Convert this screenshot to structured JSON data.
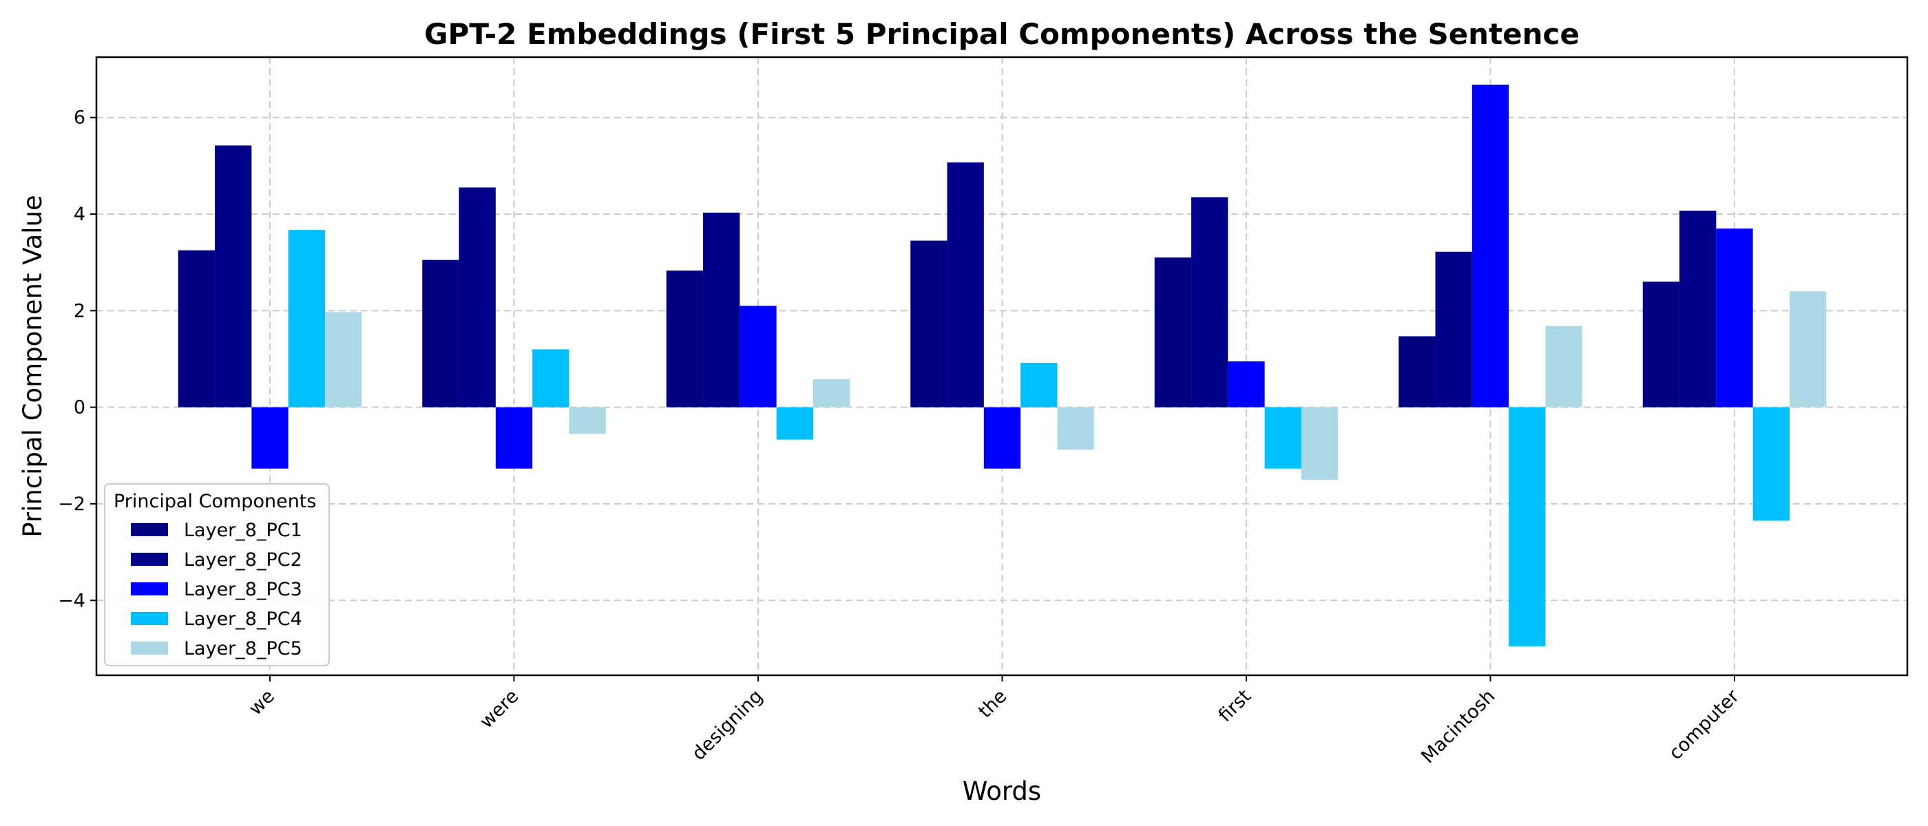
{
  "chart_data": {
    "type": "bar",
    "title": "GPT-2 Embeddings (First 5 Principal Components) Across the Sentence",
    "xlabel": "Words",
    "ylabel": "Principal Component Value",
    "categories": [
      "we",
      "were",
      "designing",
      "the",
      "first",
      "Macintosh",
      "computer"
    ],
    "ylim": [
      -5.55,
      7.25
    ],
    "yticks": [
      -4,
      -2,
      0,
      2,
      4,
      6
    ],
    "ytick_labels": [
      "−4",
      "−2",
      "0",
      "2",
      "4",
      "6"
    ],
    "grid": true,
    "legend": {
      "title": "Principal Components",
      "placement": "lower-left"
    },
    "series": [
      {
        "name": "Layer_8_PC1",
        "color": "#000080",
        "values": [
          3.25,
          3.05,
          2.83,
          3.45,
          3.1,
          1.47,
          2.6
        ]
      },
      {
        "name": "Layer_8_PC2",
        "color": "#00008b",
        "values": [
          5.42,
          4.55,
          4.03,
          5.07,
          4.35,
          3.22,
          4.07
        ]
      },
      {
        "name": "Layer_8_PC3",
        "color": "#0000ff",
        "values": [
          -1.27,
          -1.27,
          2.1,
          -1.27,
          0.95,
          6.68,
          3.7
        ]
      },
      {
        "name": "Layer_8_PC4",
        "color": "#00bfff",
        "values": [
          3.67,
          1.2,
          -0.67,
          0.92,
          -1.27,
          -4.95,
          -2.35
        ]
      },
      {
        "name": "Layer_8_PC5",
        "color": "#add8e6",
        "values": [
          1.97,
          -0.55,
          0.58,
          -0.88,
          -1.5,
          1.68,
          2.4
        ]
      }
    ]
  }
}
